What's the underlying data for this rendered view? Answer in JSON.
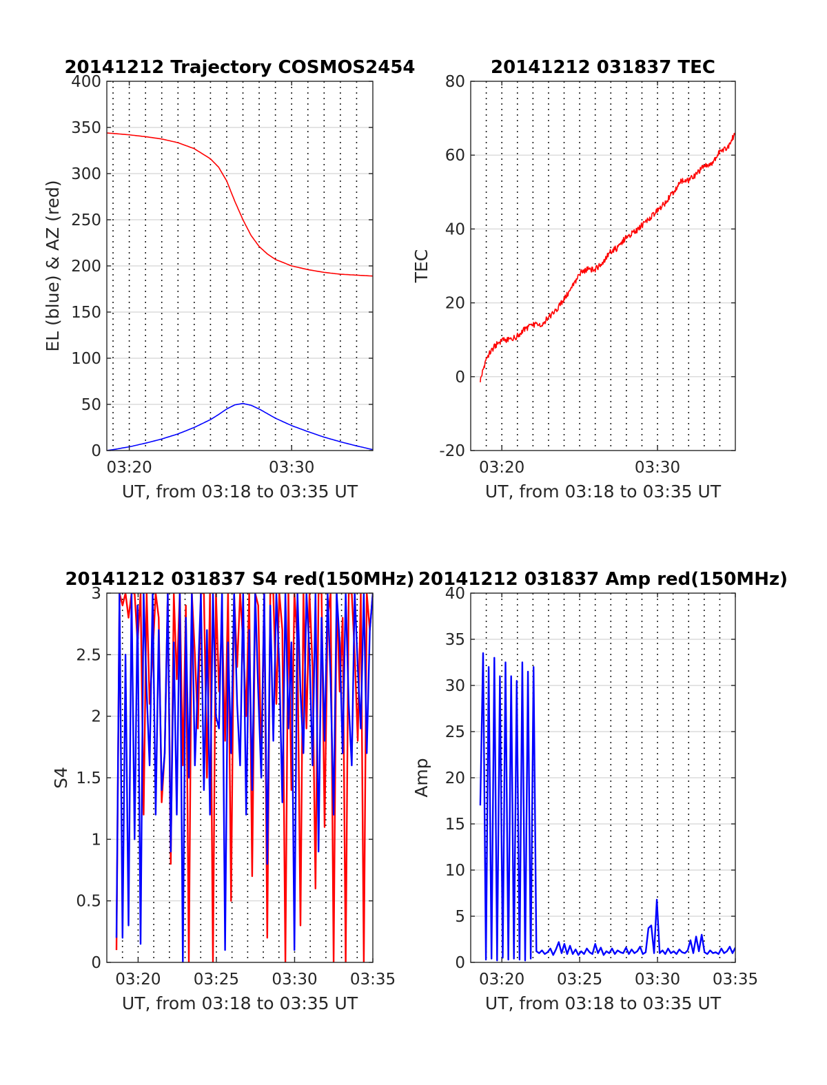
{
  "figure": {
    "background": "#ffffff"
  },
  "chart_data": [
    {
      "id": "trajectory",
      "type": "line",
      "title": "20141212 Trajectory COSMOS2454",
      "xlabel": "UT, from 03:18 to 03:35 UT",
      "ylabel": "EL (blue) & AZ (red)",
      "xlim": [
        "03:18:37",
        "03:35:00"
      ],
      "ylim": [
        0,
        400
      ],
      "yticks": [
        0,
        50,
        100,
        150,
        200,
        250,
        300,
        350,
        400
      ],
      "yticklabels": [
        "0",
        "50",
        "100",
        "150",
        "200",
        "250",
        "300",
        "350",
        "400"
      ],
      "xticks": [
        "03:20",
        "03:30"
      ],
      "xticklabels": [
        "03:20",
        "03:30"
      ],
      "xgrid_every_minutes": 1,
      "grid": true,
      "series": [
        {
          "color": "#ff0000",
          "x": [
            "03:18:37",
            "03:19:00",
            "03:20:00",
            "03:21:00",
            "03:22:00",
            "03:23:00",
            "03:24:00",
            "03:25:00",
            "03:25:30",
            "03:26:00",
            "03:26:30",
            "03:27:00",
            "03:27:30",
            "03:28:00",
            "03:28:30",
            "03:29:00",
            "03:30:00",
            "03:31:00",
            "03:32:00",
            "03:33:00",
            "03:34:00",
            "03:35:00"
          ],
          "values": [
            344,
            343.5,
            342,
            340,
            337.5,
            333.5,
            327,
            316,
            307,
            292,
            270,
            250,
            233,
            221,
            213,
            207,
            200,
            196,
            193,
            191,
            190,
            189
          ]
        },
        {
          "color": "#0000ff",
          "x": [
            "03:18:37",
            "03:19:00",
            "03:20:00",
            "03:21:00",
            "03:22:00",
            "03:23:00",
            "03:24:00",
            "03:25:00",
            "03:25:30",
            "03:26:00",
            "03:26:30",
            "03:27:00",
            "03:27:30",
            "03:28:00",
            "03:28:30",
            "03:29:00",
            "03:30:00",
            "03:31:00",
            "03:32:00",
            "03:33:00",
            "03:34:00",
            "03:35:00"
          ],
          "values": [
            0,
            1,
            4,
            8,
            12.5,
            18,
            25,
            33.5,
            39,
            45,
            49.5,
            51,
            49,
            45,
            40,
            35,
            27,
            20.5,
            14.5,
            9.5,
            5,
            1
          ]
        }
      ]
    },
    {
      "id": "tec",
      "type": "line",
      "title": "20141212 031837 TEC",
      "xlabel": "UT, from 03:18 to 03:35 UT",
      "ylabel": "TEC",
      "xlim": [
        "03:18:00",
        "03:35:00"
      ],
      "ylim": [
        -20,
        80
      ],
      "yticks": [
        -20,
        0,
        20,
        40,
        60,
        80
      ],
      "yticklabels": [
        "-20",
        "0",
        "20",
        "40",
        "60",
        "80"
      ],
      "xticks": [
        "03:20",
        "03:30"
      ],
      "xticklabels": [
        "03:20",
        "03:30"
      ],
      "xgrid_every_minutes": 1,
      "grid": true,
      "series": [
        {
          "color": "#ff0000",
          "x": [
            "03:18:37",
            "03:19:00",
            "03:19:30",
            "03:20:00",
            "03:20:30",
            "03:21:00",
            "03:21:30",
            "03:22:00",
            "03:22:30",
            "03:23:00",
            "03:23:30",
            "03:24:00",
            "03:24:30",
            "03:25:00",
            "03:25:30",
            "03:26:00",
            "03:26:30",
            "03:27:00",
            "03:27:30",
            "03:28:00",
            "03:28:30",
            "03:29:00",
            "03:29:30",
            "03:30:00",
            "03:30:30",
            "03:31:00",
            "03:31:30",
            "03:32:00",
            "03:32:30",
            "03:33:00",
            "03:33:30",
            "03:34:00",
            "03:34:30",
            "03:35:00"
          ],
          "values": [
            -1,
            5,
            8,
            10,
            10,
            11,
            13,
            14,
            14,
            16,
            18,
            21,
            24,
            28,
            29,
            29,
            31,
            34,
            35,
            38,
            39,
            41,
            43,
            45,
            47,
            50,
            53,
            53,
            55,
            57,
            58,
            61,
            62,
            66
          ]
        }
      ]
    },
    {
      "id": "s4",
      "type": "line",
      "title": "20141212 031837 S4 red(150MHz)",
      "xlabel": "UT, from 03:18 to 03:35 UT",
      "ylabel": "S4",
      "xlim": [
        "03:18:00",
        "03:35:00"
      ],
      "ylim": [
        0,
        3
      ],
      "yticks": [
        0,
        0.5,
        1,
        1.5,
        2,
        2.5,
        3
      ],
      "yticklabels": [
        "0",
        "0.5",
        "1",
        "1.5",
        "2",
        "2.5",
        "3"
      ],
      "xticks": [
        "03:20",
        "03:25",
        "03:30",
        "03:35"
      ],
      "xticklabels": [
        "03:20",
        "03:25",
        "03:30",
        "03:35"
      ],
      "xgrid_every_minutes": 1,
      "grid": true,
      "series": [
        {
          "color": "#ff0000",
          "x_start": "03:18:37",
          "x_end": "03:35:00",
          "values": [
            0.1,
            3,
            2.9,
            3,
            2.8,
            3,
            3,
            2.6,
            3,
            1.2,
            3,
            2.1,
            2.5,
            3,
            2.8,
            1.3,
            1.7,
            3,
            0.8,
            3,
            2.3,
            3,
            1.6,
            2.9,
            0,
            3,
            2.5,
            1.9,
            3,
            3,
            1.5,
            3,
            0.0,
            3,
            2.2,
            2.8,
            1.8,
            3,
            0.5,
            3,
            2.4,
            3,
            2.6,
            2.0,
            3,
            0.7,
            3,
            2.9,
            1.6,
            3,
            0.2,
            3,
            3,
            2.1,
            3,
            2.7,
            0.0,
            3,
            1.4,
            3,
            2.6,
            0.3,
            3,
            1.9,
            3,
            2.4,
            0.6,
            3,
            3,
            1.1,
            2.8,
            3,
            0.0,
            3,
            2.2,
            2.8,
            0.0,
            3,
            3,
            2.5,
            1.8,
            3,
            0.0,
            3,
            2.7,
            3
          ]
        },
        {
          "color": "#0000ff",
          "x_start": "03:18:37",
          "x_end": "03:35:00",
          "values": [
            0.2,
            3,
            0.2,
            2.5,
            0.3,
            3,
            1.0,
            2.9,
            0.15,
            3,
            2.2,
            1.6,
            3,
            1.2,
            2.7,
            1.4,
            1.7,
            3,
            0.9,
            2.6,
            1.2,
            3,
            0.0,
            2.8,
            1.5,
            3,
            1.6,
            2.3,
            3,
            1.4,
            2.7,
            1.2,
            3,
            2.0,
            1.9,
            3,
            0.1,
            2.6,
            1.7,
            3,
            2.1,
            1.6,
            3,
            1.2,
            2.7,
            1.4,
            3,
            2.2,
            1.5,
            3,
            0.8,
            2.9,
            1.8,
            3,
            2.4,
            1.3,
            3,
            1.9,
            2.6,
            0.1,
            3,
            2.2,
            1.7,
            3,
            2.5,
            1.6,
            3,
            0.9,
            2.8,
            1.8,
            3,
            2.3,
            1.2,
            3,
            2.6,
            1.7,
            3,
            2.1,
            1.6,
            3,
            2.4,
            1.9,
            3,
            1.7,
            2.7,
            3
          ]
        }
      ]
    },
    {
      "id": "amp",
      "type": "line",
      "title": "20141212 031837 Amp red(150MHz)",
      "xlabel": "UT, from 03:18 to 03:35 UT",
      "ylabel": "Amp",
      "xlim": [
        "03:18:00",
        "03:35:00"
      ],
      "ylim": [
        0,
        40
      ],
      "yticks": [
        0,
        5,
        10,
        15,
        20,
        25,
        30,
        35,
        40
      ],
      "yticklabels": [
        "0",
        "5",
        "10",
        "15",
        "20",
        "25",
        "30",
        "35",
        "40"
      ],
      "xticks": [
        "03:20",
        "03:25",
        "03:30",
        "03:35"
      ],
      "xticklabels": [
        "03:20",
        "03:25",
        "03:30",
        "03:35"
      ],
      "xgrid_every_minutes": 1,
      "grid": true,
      "series": [
        {
          "color": "#0000ff",
          "x_start": "03:18:37",
          "x_end": "03:35:00",
          "values": [
            17,
            33.5,
            0.3,
            32,
            0.4,
            33,
            0.2,
            31,
            0.5,
            32.5,
            0.3,
            31,
            0.4,
            30.5,
            0.3,
            32.5,
            0.2,
            31.5,
            0.4,
            32,
            1.2,
            1.0,
            1.3,
            0.9,
            1.1,
            1.5,
            0.8,
            1.4,
            2.2,
            1.0,
            2.0,
            0.9,
            1.8,
            0.9,
            1.4,
            0.8,
            1.2,
            0.9,
            1.5,
            1.1,
            0.9,
            2.0,
            1.0,
            1.6,
            0.8,
            1.2,
            1.0,
            1.5,
            0.9,
            1.3,
            1.1,
            1.0,
            1.6,
            0.9,
            1.4,
            1.0,
            1.2,
            1.7,
            0.9,
            1.1,
            3.7,
            4.0,
            1.0,
            6.8,
            1.0,
            1.3,
            0.9,
            1.5,
            1.0,
            1.2,
            0.9,
            1.4,
            1.1,
            1.0,
            1.3,
            2.4,
            1.0,
            2.8,
            1.2,
            3.0,
            1.1,
            0.9,
            1.3,
            1.0,
            1.1,
            0.9,
            1.5,
            1.0,
            1.2,
            1.7,
            1.0,
            1.6
          ]
        }
      ]
    }
  ]
}
